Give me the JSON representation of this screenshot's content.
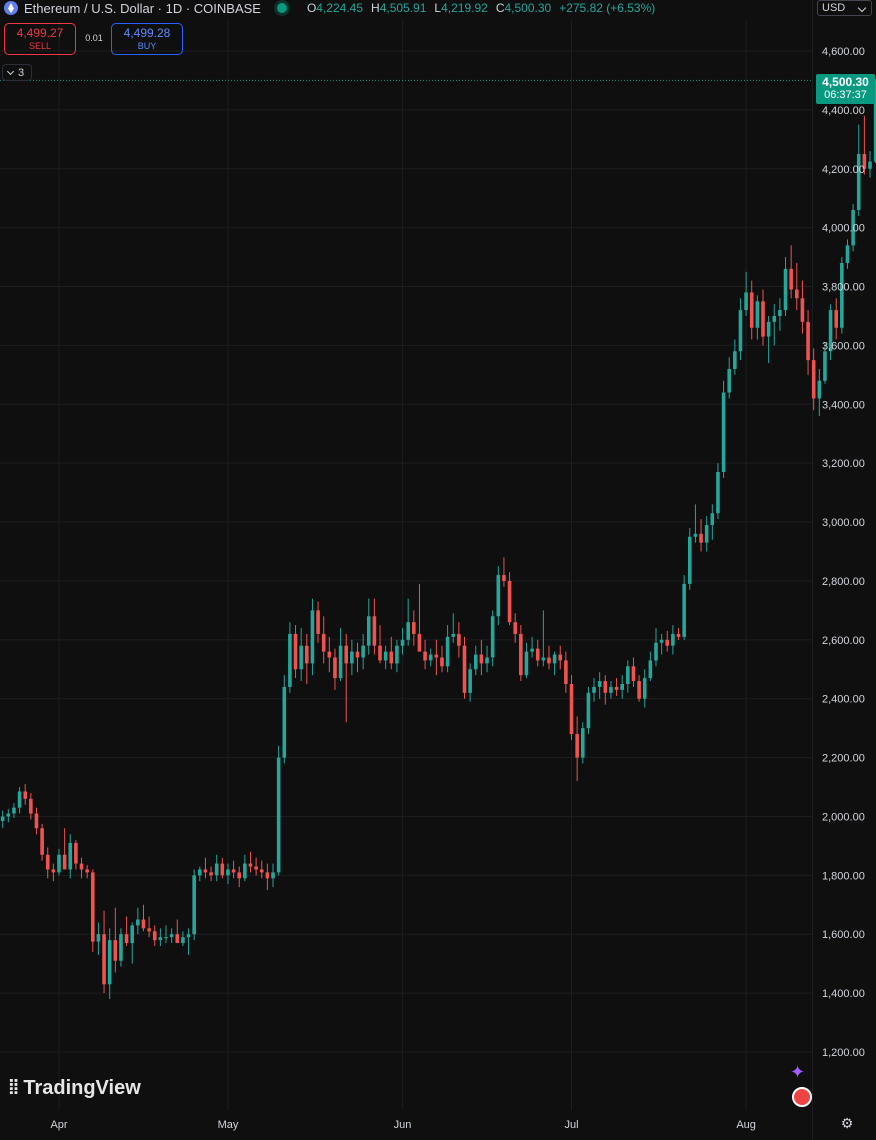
{
  "header": {
    "symbol": "Ethereum / U.S. Dollar · 1D · COINBASE",
    "ohlc": {
      "o_label": "O",
      "o": "4,224.45",
      "h_label": "H",
      "h": "4,505.91",
      "l_label": "L",
      "l": "4,219.92",
      "c_label": "C",
      "c": "4,500.30"
    },
    "change": "+275.82 (+6.53%)",
    "currency": "USD"
  },
  "trade": {
    "sell_price": "4,499.27",
    "sell_label": "SELL",
    "spread": "0.01",
    "buy_price": "4,499.28",
    "buy_label": "BUY"
  },
  "indicators_count": "3",
  "last_price": {
    "price": "4,500.30",
    "countdown": "06:37:37"
  },
  "logo": "TradingView",
  "colors": {
    "up": "#26a69a",
    "down": "#ef5350",
    "background": "#0f0f0f",
    "grid": "#1e1e1e"
  },
  "icons": {
    "ethereum": "ethereum-icon",
    "live": "live-dot-icon",
    "gear": "gear-icon"
  },
  "chart_data": {
    "type": "candlestick",
    "ylim": [
      1100,
      4650
    ],
    "y_ticks": [
      1200,
      1400,
      1600,
      1800,
      2000,
      2200,
      2400,
      2600,
      2800,
      3000,
      3200,
      3400,
      3600,
      3800,
      4000,
      4200,
      4400,
      4600
    ],
    "y_tick_labels": [
      "1,200.00",
      "1,400.00",
      "1,600.00",
      "1,800.00",
      "2,000.00",
      "2,200.00",
      "2,400.00",
      "2,600.00",
      "2,800.00",
      "3,000.00",
      "3,200.00",
      "3,400.00",
      "3,600.00",
      "3,800.00",
      "4,000.00",
      "4,200.00",
      "4,400.00",
      "4,600.00"
    ],
    "x_labels": [
      {
        "label": "Apr",
        "day": 0
      },
      {
        "label": "May",
        "day": 30
      },
      {
        "label": "Jun",
        "day": 61
      },
      {
        "label": "Jul",
        "day": 91
      },
      {
        "label": "Aug",
        "day": 122
      }
    ],
    "first_day_offset": -10,
    "grid": true,
    "candles": [
      [
        1985,
        2020,
        1960,
        2000
      ],
      [
        2000,
        2025,
        1980,
        2010
      ],
      [
        2010,
        2045,
        1995,
        2030
      ],
      [
        2030,
        2100,
        2010,
        2085
      ],
      [
        2085,
        2110,
        2040,
        2060
      ],
      [
        2060,
        2080,
        1990,
        2010
      ],
      [
        2010,
        2030,
        1940,
        1960
      ],
      [
        1960,
        1975,
        1850,
        1870
      ],
      [
        1870,
        1895,
        1790,
        1820
      ],
      [
        1820,
        1840,
        1780,
        1810
      ],
      [
        1810,
        1890,
        1800,
        1870
      ],
      [
        1870,
        1960,
        1840,
        1820
      ],
      [
        1820,
        1940,
        1790,
        1910
      ],
      [
        1910,
        1920,
        1820,
        1840
      ],
      [
        1840,
        1860,
        1790,
        1820
      ],
      [
        1820,
        1835,
        1790,
        1810
      ],
      [
        1810,
        1820,
        1540,
        1575
      ],
      [
        1575,
        1640,
        1530,
        1600
      ],
      [
        1600,
        1680,
        1400,
        1430
      ],
      [
        1430,
        1620,
        1380,
        1580
      ],
      [
        1580,
        1690,
        1470,
        1510
      ],
      [
        1510,
        1620,
        1490,
        1600
      ],
      [
        1600,
        1660,
        1560,
        1570
      ],
      [
        1570,
        1640,
        1500,
        1630
      ],
      [
        1630,
        1690,
        1600,
        1650
      ],
      [
        1650,
        1700,
        1610,
        1620
      ],
      [
        1620,
        1660,
        1590,
        1610
      ],
      [
        1610,
        1630,
        1560,
        1580
      ],
      [
        1580,
        1620,
        1560,
        1590
      ],
      [
        1590,
        1630,
        1570,
        1590
      ],
      [
        1590,
        1620,
        1570,
        1600
      ],
      [
        1600,
        1650,
        1570,
        1570
      ],
      [
        1570,
        1610,
        1560,
        1590
      ],
      [
        1590,
        1620,
        1530,
        1600
      ],
      [
        1600,
        1820,
        1580,
        1800
      ],
      [
        1800,
        1830,
        1780,
        1820
      ],
      [
        1820,
        1860,
        1790,
        1810
      ],
      [
        1810,
        1830,
        1780,
        1800
      ],
      [
        1800,
        1870,
        1780,
        1840
      ],
      [
        1840,
        1860,
        1790,
        1800
      ],
      [
        1800,
        1840,
        1770,
        1820
      ],
      [
        1820,
        1850,
        1790,
        1810
      ],
      [
        1810,
        1830,
        1760,
        1790
      ],
      [
        1790,
        1870,
        1780,
        1840
      ],
      [
        1840,
        1880,
        1810,
        1830
      ],
      [
        1830,
        1860,
        1800,
        1820
      ],
      [
        1820,
        1850,
        1790,
        1810
      ],
      [
        1810,
        1840,
        1750,
        1790
      ],
      [
        1790,
        1840,
        1760,
        1810
      ],
      [
        1810,
        2240,
        1800,
        2200
      ],
      [
        2200,
        2480,
        2180,
        2440
      ],
      [
        2440,
        2660,
        2420,
        2620
      ],
      [
        2620,
        2650,
        2470,
        2500
      ],
      [
        2500,
        2640,
        2460,
        2580
      ],
      [
        2580,
        2620,
        2450,
        2520
      ],
      [
        2520,
        2740,
        2480,
        2700
      ],
      [
        2700,
        2730,
        2590,
        2620
      ],
      [
        2620,
        2680,
        2520,
        2560
      ],
      [
        2560,
        2610,
        2490,
        2540
      ],
      [
        2540,
        2570,
        2430,
        2470
      ],
      [
        2470,
        2640,
        2460,
        2580
      ],
      [
        2580,
        2620,
        2320,
        2520
      ],
      [
        2520,
        2600,
        2480,
        2560
      ],
      [
        2560,
        2590,
        2490,
        2540
      ],
      [
        2540,
        2620,
        2500,
        2580
      ],
      [
        2580,
        2740,
        2550,
        2680
      ],
      [
        2680,
        2740,
        2550,
        2580
      ],
      [
        2580,
        2650,
        2520,
        2530
      ],
      [
        2530,
        2580,
        2500,
        2560
      ],
      [
        2560,
        2610,
        2500,
        2520
      ],
      [
        2520,
        2600,
        2490,
        2580
      ],
      [
        2580,
        2640,
        2550,
        2600
      ],
      [
        2600,
        2740,
        2580,
        2660
      ],
      [
        2660,
        2700,
        2580,
        2620
      ],
      [
        2620,
        2790,
        2590,
        2560
      ],
      [
        2560,
        2600,
        2500,
        2530
      ],
      [
        2530,
        2570,
        2510,
        2550
      ],
      [
        2550,
        2600,
        2480,
        2540
      ],
      [
        2540,
        2580,
        2490,
        2510
      ],
      [
        2510,
        2650,
        2490,
        2610
      ],
      [
        2610,
        2690,
        2590,
        2620
      ],
      [
        2620,
        2660,
        2540,
        2580
      ],
      [
        2580,
        2610,
        2400,
        2420
      ],
      [
        2420,
        2520,
        2390,
        2500
      ],
      [
        2500,
        2580,
        2480,
        2550
      ],
      [
        2550,
        2600,
        2480,
        2520
      ],
      [
        2520,
        2580,
        2490,
        2540
      ],
      [
        2540,
        2700,
        2510,
        2680
      ],
      [
        2680,
        2850,
        2650,
        2820
      ],
      [
        2820,
        2880,
        2780,
        2800
      ],
      [
        2800,
        2830,
        2650,
        2660
      ],
      [
        2660,
        2690,
        2590,
        2620
      ],
      [
        2620,
        2650,
        2460,
        2480
      ],
      [
        2480,
        2590,
        2470,
        2560
      ],
      [
        2560,
        2610,
        2540,
        2570
      ],
      [
        2570,
        2600,
        2510,
        2530
      ],
      [
        2530,
        2700,
        2510,
        2540
      ],
      [
        2540,
        2580,
        2500,
        2520
      ],
      [
        2520,
        2560,
        2480,
        2550
      ],
      [
        2550,
        2580,
        2500,
        2530
      ],
      [
        2530,
        2560,
        2420,
        2450
      ],
      [
        2450,
        2480,
        2260,
        2280
      ],
      [
        2280,
        2340,
        2120,
        2200
      ],
      [
        2200,
        2320,
        2180,
        2300
      ],
      [
        2300,
        2440,
        2280,
        2420
      ],
      [
        2420,
        2470,
        2390,
        2440
      ],
      [
        2440,
        2490,
        2400,
        2460
      ],
      [
        2460,
        2480,
        2380,
        2420
      ],
      [
        2420,
        2460,
        2400,
        2440
      ],
      [
        2440,
        2470,
        2410,
        2430
      ],
      [
        2430,
        2480,
        2400,
        2450
      ],
      [
        2450,
        2530,
        2420,
        2510
      ],
      [
        2510,
        2540,
        2440,
        2460
      ],
      [
        2460,
        2480,
        2390,
        2400
      ],
      [
        2400,
        2500,
        2370,
        2470
      ],
      [
        2470,
        2560,
        2460,
        2530
      ],
      [
        2530,
        2640,
        2510,
        2590
      ],
      [
        2590,
        2620,
        2550,
        2600
      ],
      [
        2600,
        2630,
        2560,
        2580
      ],
      [
        2580,
        2650,
        2550,
        2620
      ],
      [
        2620,
        2640,
        2600,
        2610
      ],
      [
        2610,
        2820,
        2600,
        2790
      ],
      [
        2790,
        2980,
        2770,
        2950
      ],
      [
        2950,
        3060,
        2930,
        2960
      ],
      [
        2960,
        3010,
        2900,
        2930
      ],
      [
        2930,
        3020,
        2900,
        2990
      ],
      [
        2990,
        3060,
        2940,
        3030
      ],
      [
        3030,
        3200,
        3010,
        3170
      ],
      [
        3170,
        3480,
        3150,
        3440
      ],
      [
        3440,
        3560,
        3420,
        3520
      ],
      [
        3520,
        3620,
        3500,
        3580
      ],
      [
        3580,
        3760,
        3550,
        3720
      ],
      [
        3720,
        3850,
        3700,
        3780
      ],
      [
        3780,
        3820,
        3620,
        3660
      ],
      [
        3660,
        3770,
        3620,
        3750
      ],
      [
        3750,
        3790,
        3600,
        3630
      ],
      [
        3630,
        3700,
        3540,
        3680
      ],
      [
        3680,
        3740,
        3600,
        3700
      ],
      [
        3700,
        3760,
        3650,
        3720
      ],
      [
        3720,
        3900,
        3700,
        3860
      ],
      [
        3860,
        3940,
        3760,
        3790
      ],
      [
        3790,
        3880,
        3720,
        3760
      ],
      [
        3760,
        3820,
        3640,
        3680
      ],
      [
        3680,
        3720,
        3500,
        3550
      ],
      [
        3550,
        3590,
        3380,
        3420
      ],
      [
        3420,
        3520,
        3360,
        3480
      ],
      [
        3480,
        3610,
        3470,
        3580
      ],
      [
        3580,
        3740,
        3550,
        3720
      ],
      [
        3720,
        3760,
        3620,
        3660
      ],
      [
        3660,
        3900,
        3640,
        3880
      ],
      [
        3880,
        3960,
        3860,
        3940
      ],
      [
        3940,
        4080,
        3920,
        4060
      ],
      [
        4060,
        4350,
        4040,
        4250
      ],
      [
        4250,
        4380,
        4180,
        4200
      ],
      [
        4200,
        4260,
        4170,
        4224.45
      ],
      [
        4224.45,
        4505.91,
        4219.92,
        4500.3
      ]
    ]
  }
}
